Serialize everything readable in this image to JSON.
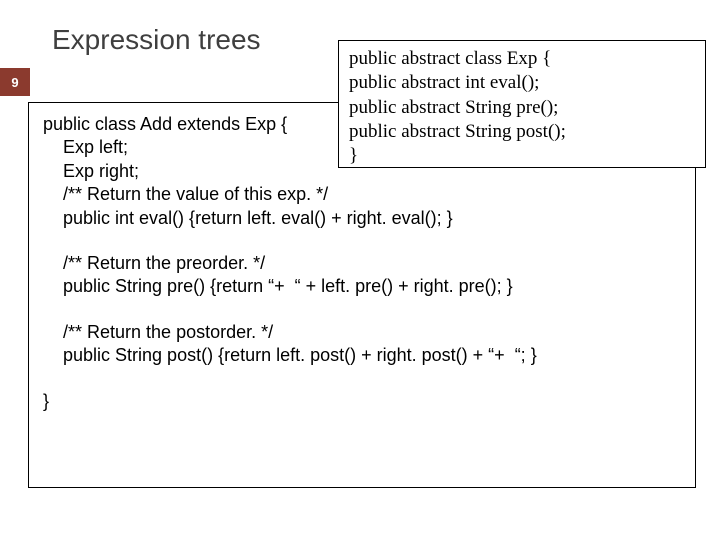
{
  "title": "Expression trees",
  "page_number": "9",
  "abstract_box": {
    "line1": "public abstract class Exp {",
    "line2": "      public abstract int eval();",
    "line3": "      public abstract String pre();",
    "line4": "      public abstract String post();",
    "line5": "}"
  },
  "main_box": {
    "l1": "public class Add extends Exp {",
    "l2": "    Exp left;",
    "l3": "    Exp right;",
    "l4": "    /** Return the value of this exp. */",
    "l5": "    public int eval() {return left. eval() + right. eval(); }",
    "l6": "    /** Return the preorder. */",
    "l7": "    public String pre() {return “+  “ + left. pre() + right. pre(); }",
    "l8": "    /** Return the postorder. */",
    "l9": "    public String post() {return left. post() + right. post() + “+  “; }",
    "l10": "}"
  },
  "colors": {
    "badge_bg": "#8b3a2e",
    "title_color": "#3f3f3f",
    "text_color": "#000000",
    "border_color": "#000000",
    "bg": "#ffffff"
  },
  "fonts": {
    "title_size": 28,
    "abstract_family": "Times New Roman",
    "abstract_size": 19,
    "main_family": "Arial",
    "main_size": 18
  }
}
